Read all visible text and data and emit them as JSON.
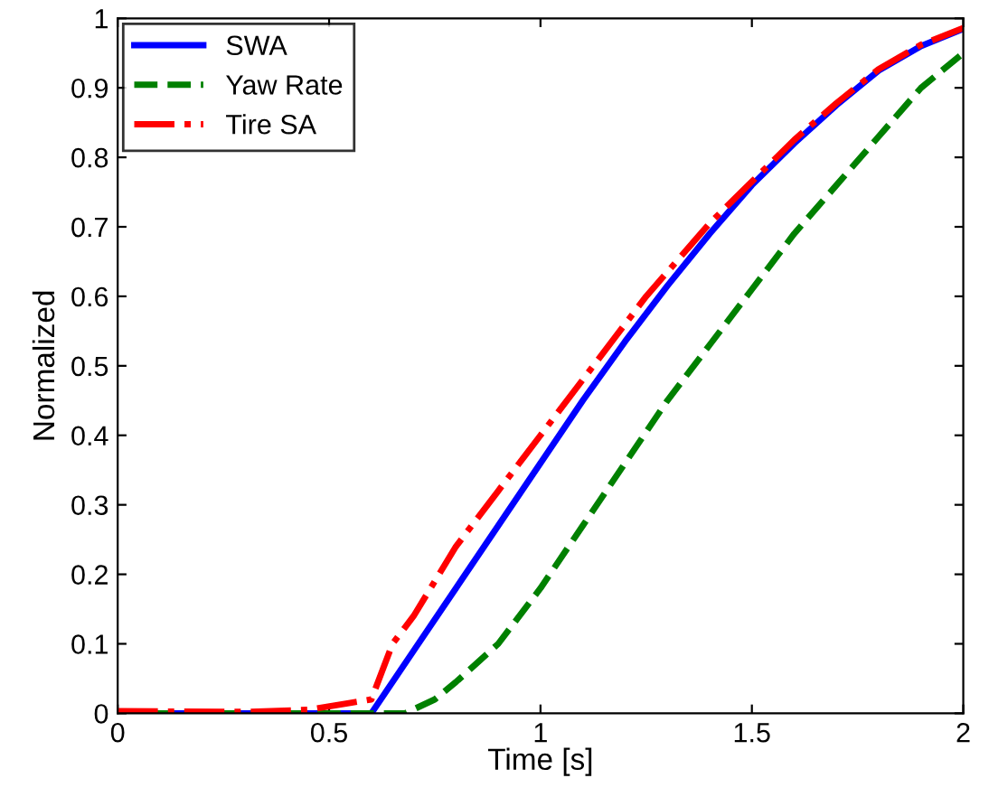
{
  "chart_data": {
    "type": "line",
    "xlabel": "Time [s]",
    "ylabel": "Normalized",
    "xlim": [
      0,
      2
    ],
    "ylim": [
      0,
      1
    ],
    "xticks": [
      0,
      0.5,
      1,
      1.5,
      2
    ],
    "yticks": [
      0,
      0.1,
      0.2,
      0.3,
      0.4,
      0.5,
      0.6,
      0.7,
      0.8,
      0.9,
      1
    ],
    "grid": false,
    "legend": "top left",
    "series": [
      {
        "name": "SWA",
        "color": "#0000ff",
        "line_style": "solid",
        "x": [
          0,
          0.3,
          0.6,
          0.7,
          0.8,
          0.9,
          1.0,
          1.1,
          1.2,
          1.3,
          1.4,
          1.5,
          1.6,
          1.7,
          1.8,
          1.9,
          2.0
        ],
        "values": [
          0,
          0,
          0,
          0.09,
          0.18,
          0.27,
          0.36,
          0.45,
          0.535,
          0.615,
          0.69,
          0.76,
          0.82,
          0.875,
          0.925,
          0.96,
          0.985
        ]
      },
      {
        "name": "Yaw Rate",
        "color": "#008000",
        "line_style": "dashed",
        "x": [
          0,
          0.4,
          0.68,
          0.75,
          0.8,
          0.9,
          1.0,
          1.1,
          1.2,
          1.3,
          1.4,
          1.5,
          1.6,
          1.7,
          1.8,
          1.9,
          2.0
        ],
        "values": [
          0,
          0,
          0,
          0.02,
          0.045,
          0.1,
          0.18,
          0.27,
          0.36,
          0.45,
          0.53,
          0.61,
          0.69,
          0.76,
          0.83,
          0.9,
          0.95
        ]
      },
      {
        "name": "Tire SA",
        "color": "#ff0000",
        "line_style": "dashdot",
        "x": [
          0,
          0.3,
          0.45,
          0.55,
          0.6,
          0.65,
          0.7,
          0.8,
          0.9,
          1.0,
          1.1,
          1.25,
          1.4,
          1.5,
          1.6,
          1.7,
          1.8,
          1.9,
          2.0
        ],
        "values": [
          0.003,
          0.002,
          0.005,
          0.015,
          0.02,
          0.1,
          0.14,
          0.24,
          0.32,
          0.4,
          0.48,
          0.6,
          0.705,
          0.765,
          0.825,
          0.878,
          0.927,
          0.962,
          0.986
        ]
      }
    ]
  }
}
